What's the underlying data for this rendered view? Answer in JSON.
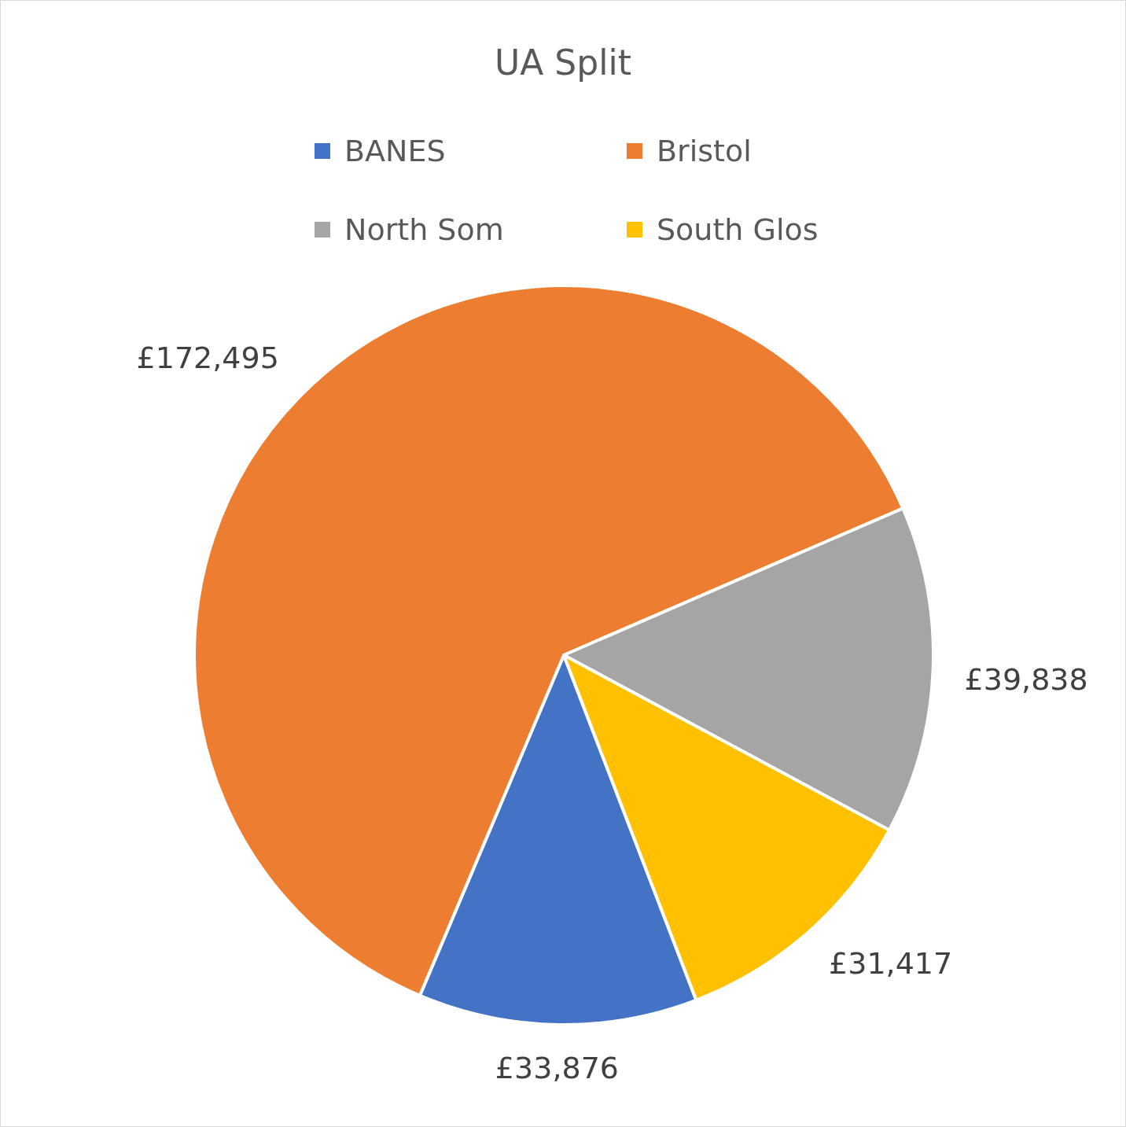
{
  "chart_data": {
    "type": "pie",
    "title": "UA Split",
    "categories": [
      "BANES",
      "Bristol",
      "North Som",
      "South Glos"
    ],
    "values": [
      33876,
      172495,
      39838,
      31417
    ],
    "colors": [
      "#4472c4",
      "#ed7d31",
      "#a5a5a5",
      "#ffc000"
    ],
    "value_labels": [
      "£33,876",
      "£172,495",
      "£39,838",
      "£31,417"
    ],
    "legend": "top"
  }
}
